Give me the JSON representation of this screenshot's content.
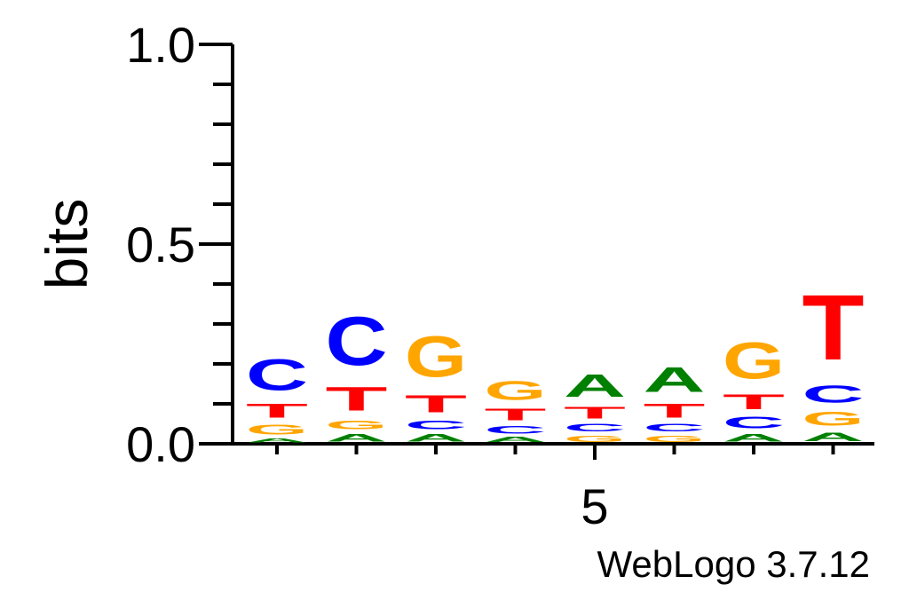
{
  "chart_data": {
    "type": "sequence-logo",
    "ylabel": "bits",
    "ylim": [
      0,
      1.0
    ],
    "y_ticks": [
      "0.0",
      "0.5",
      "1.0"
    ],
    "x_tick_labels": [
      {
        "position": 5,
        "label": "5"
      }
    ],
    "footer": "WebLogo 3.7.12",
    "colors": {
      "A": "#008000",
      "C": "#0000ff",
      "G": "#ffa500",
      "T": "#ff0000"
    },
    "positions": [
      {
        "pos": 1,
        "letters": [
          {
            "letter": "A",
            "bits": 0.015
          },
          {
            "letter": "G",
            "bits": 0.04
          },
          {
            "letter": "T",
            "bits": 0.055
          },
          {
            "letter": "C",
            "bits": 0.125
          }
        ]
      },
      {
        "pos": 2,
        "letters": [
          {
            "letter": "A",
            "bits": 0.03
          },
          {
            "letter": "G",
            "bits": 0.035
          },
          {
            "letter": "T",
            "bits": 0.095
          },
          {
            "letter": "C",
            "bits": 0.195
          }
        ]
      },
      {
        "pos": 3,
        "letters": [
          {
            "letter": "A",
            "bits": 0.03
          },
          {
            "letter": "C",
            "bits": 0.035
          },
          {
            "letter": "T",
            "bits": 0.07
          },
          {
            "letter": "G",
            "bits": 0.165
          }
        ]
      },
      {
        "pos": 4,
        "letters": [
          {
            "letter": "A",
            "bits": 0.02
          },
          {
            "letter": "C",
            "bits": 0.03
          },
          {
            "letter": "T",
            "bits": 0.045
          },
          {
            "letter": "G",
            "bits": 0.075
          }
        ]
      },
      {
        "pos": 5,
        "letters": [
          {
            "letter": "G",
            "bits": 0.025
          },
          {
            "letter": "C",
            "bits": 0.03
          },
          {
            "letter": "T",
            "bits": 0.045
          },
          {
            "letter": "A",
            "bits": 0.09
          }
        ]
      },
      {
        "pos": 6,
        "letters": [
          {
            "letter": "G",
            "bits": 0.025
          },
          {
            "letter": "C",
            "bits": 0.03
          },
          {
            "letter": "T",
            "bits": 0.055
          },
          {
            "letter": "A",
            "bits": 0.1
          }
        ]
      },
      {
        "pos": 7,
        "letters": [
          {
            "letter": "A",
            "bits": 0.03
          },
          {
            "letter": "C",
            "bits": 0.045
          },
          {
            "letter": "T",
            "bits": 0.06
          },
          {
            "letter": "G",
            "bits": 0.145
          }
        ]
      },
      {
        "pos": 8,
        "letters": [
          {
            "letter": "A",
            "bits": 0.035
          },
          {
            "letter": "G",
            "bits": 0.055
          },
          {
            "letter": "C",
            "bits": 0.07
          },
          {
            "letter": "T",
            "bits": 0.26
          }
        ]
      }
    ]
  }
}
